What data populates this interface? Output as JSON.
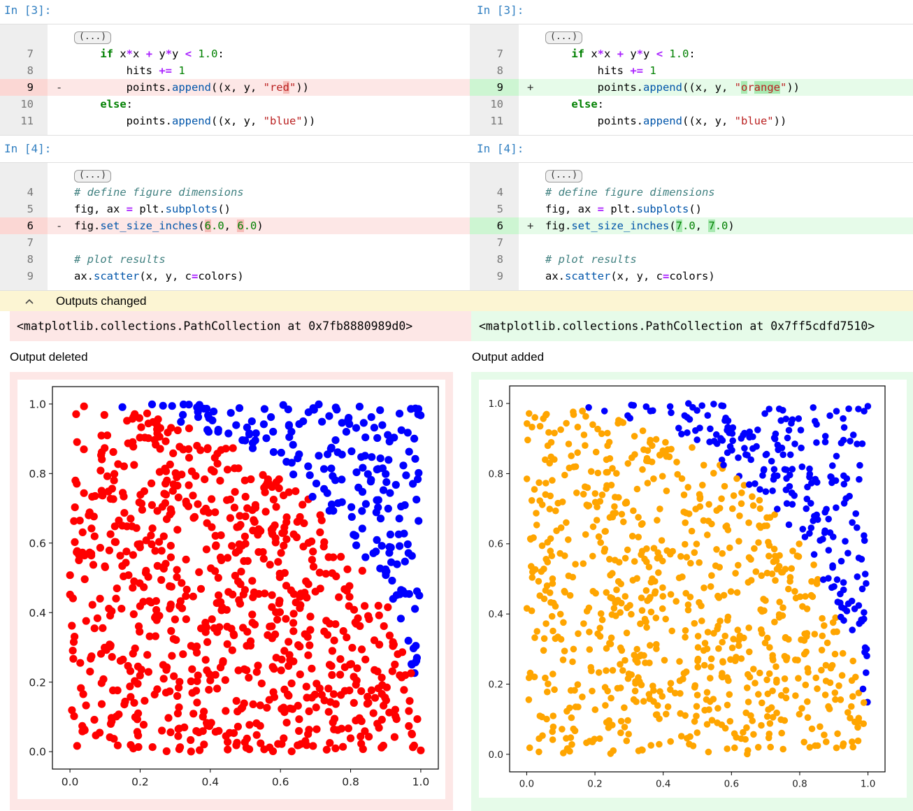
{
  "cells": [
    {
      "prompt": "In [3]:",
      "ellipsis": "(...)",
      "left_lines": [
        {
          "n": "7",
          "kind": "ctx",
          "mark": ""
        },
        {
          "n": "8",
          "kind": "ctx",
          "mark": ""
        },
        {
          "n": "9",
          "kind": "del",
          "mark": "-"
        },
        {
          "n": "10",
          "kind": "ctx",
          "mark": ""
        },
        {
          "n": "11",
          "kind": "ctx",
          "mark": ""
        }
      ],
      "right_lines": [
        {
          "n": "7",
          "kind": "ctx",
          "mark": ""
        },
        {
          "n": "8",
          "kind": "ctx",
          "mark": ""
        },
        {
          "n": "9",
          "kind": "add",
          "mark": "+"
        },
        {
          "n": "10",
          "kind": "ctx",
          "mark": ""
        },
        {
          "n": "11",
          "kind": "ctx",
          "mark": ""
        }
      ],
      "code_text": {
        "l7": "    if x*x + y*y < 1.0:",
        "l8": "        hits += 1",
        "l9_old": "        points.append((x, y, \"red\"))",
        "l9_new": "        points.append((x, y, \"orange\"))",
        "l10": "    else:",
        "l11": "        points.append((x, y, \"blue\"))"
      }
    },
    {
      "prompt": "In [4]:",
      "ellipsis": "(...)",
      "left_lines": [
        {
          "n": "4",
          "kind": "ctx",
          "mark": ""
        },
        {
          "n": "5",
          "kind": "ctx",
          "mark": ""
        },
        {
          "n": "6",
          "kind": "del",
          "mark": "-"
        },
        {
          "n": "7",
          "kind": "ctx",
          "mark": ""
        },
        {
          "n": "8",
          "kind": "ctx",
          "mark": ""
        },
        {
          "n": "9",
          "kind": "ctx",
          "mark": ""
        }
      ],
      "right_lines": [
        {
          "n": "4",
          "kind": "ctx",
          "mark": ""
        },
        {
          "n": "5",
          "kind": "ctx",
          "mark": ""
        },
        {
          "n": "6",
          "kind": "add",
          "mark": "+"
        },
        {
          "n": "7",
          "kind": "ctx",
          "mark": ""
        },
        {
          "n": "8",
          "kind": "ctx",
          "mark": ""
        },
        {
          "n": "9",
          "kind": "ctx",
          "mark": ""
        }
      ],
      "code_text": {
        "l4": "# define figure dimensions",
        "l5": "fig, ax = plt.subplots()",
        "l6_old": "fig.set_size_inches(6.0, 6.0)",
        "l6_new": "fig.set_size_inches(7.0, 7.0)",
        "l7": "",
        "l8": "# plot results",
        "l9": "ax.scatter(x, y, c=colors)"
      }
    }
  ],
  "outputs": {
    "header_label": "Outputs changed",
    "chevron_icon": "chevron-up-icon",
    "old_repr": "<matplotlib.collections.PathCollection at 0x7fb8880989d0>",
    "new_repr": "<matplotlib.collections.PathCollection at 0x7ff5cdfd7510>",
    "deleted_label": "Output deleted",
    "added_label": "Output added"
  },
  "colors": {
    "prompt": "#307fc1",
    "deleted_bg": "#fde7e6",
    "added_bg": "#e6fbe9",
    "outputs_header_bg": "#fcf5d3",
    "inside_old": "#ff0000",
    "inside_new": "#ffa500",
    "outside": "#0000ff"
  },
  "chart_data": [
    {
      "type": "scatter",
      "title": "",
      "xlabel": "",
      "ylabel": "",
      "xlim": [
        0.0,
        1.0
      ],
      "ylim": [
        0.0,
        1.0
      ],
      "xticks": [
        "0.0",
        "0.2",
        "0.4",
        "0.6",
        "0.8",
        "1.0"
      ],
      "yticks": [
        "0.0",
        "0.2",
        "0.4",
        "0.6",
        "0.8",
        "1.0"
      ],
      "series": [
        {
          "color": "red",
          "rule": "x*x + y*y < 1.0"
        },
        {
          "color": "blue",
          "rule": "x*x + y*y >= 1.0"
        }
      ],
      "points": "uniform random (x, y) in [0,1]x[0,1], approx. 1000 samples",
      "size_inches": [
        6.0,
        6.0
      ],
      "grid": false
    },
    {
      "type": "scatter",
      "title": "",
      "xlabel": "",
      "ylabel": "",
      "xlim": [
        0.0,
        1.0
      ],
      "ylim": [
        0.0,
        1.0
      ],
      "xticks": [
        "0.0",
        "0.2",
        "0.4",
        "0.6",
        "0.8",
        "1.0"
      ],
      "yticks": [
        "0.0",
        "0.2",
        "0.4",
        "0.6",
        "0.8",
        "1.0"
      ],
      "series": [
        {
          "color": "orange",
          "rule": "x*x + y*y < 1.0"
        },
        {
          "color": "blue",
          "rule": "x*x + y*y >= 1.0"
        }
      ],
      "points": "uniform random (x, y) in [0,1]x[0,1], approx. 1000 samples",
      "size_inches": [
        7.0,
        7.0
      ],
      "grid": false
    }
  ]
}
